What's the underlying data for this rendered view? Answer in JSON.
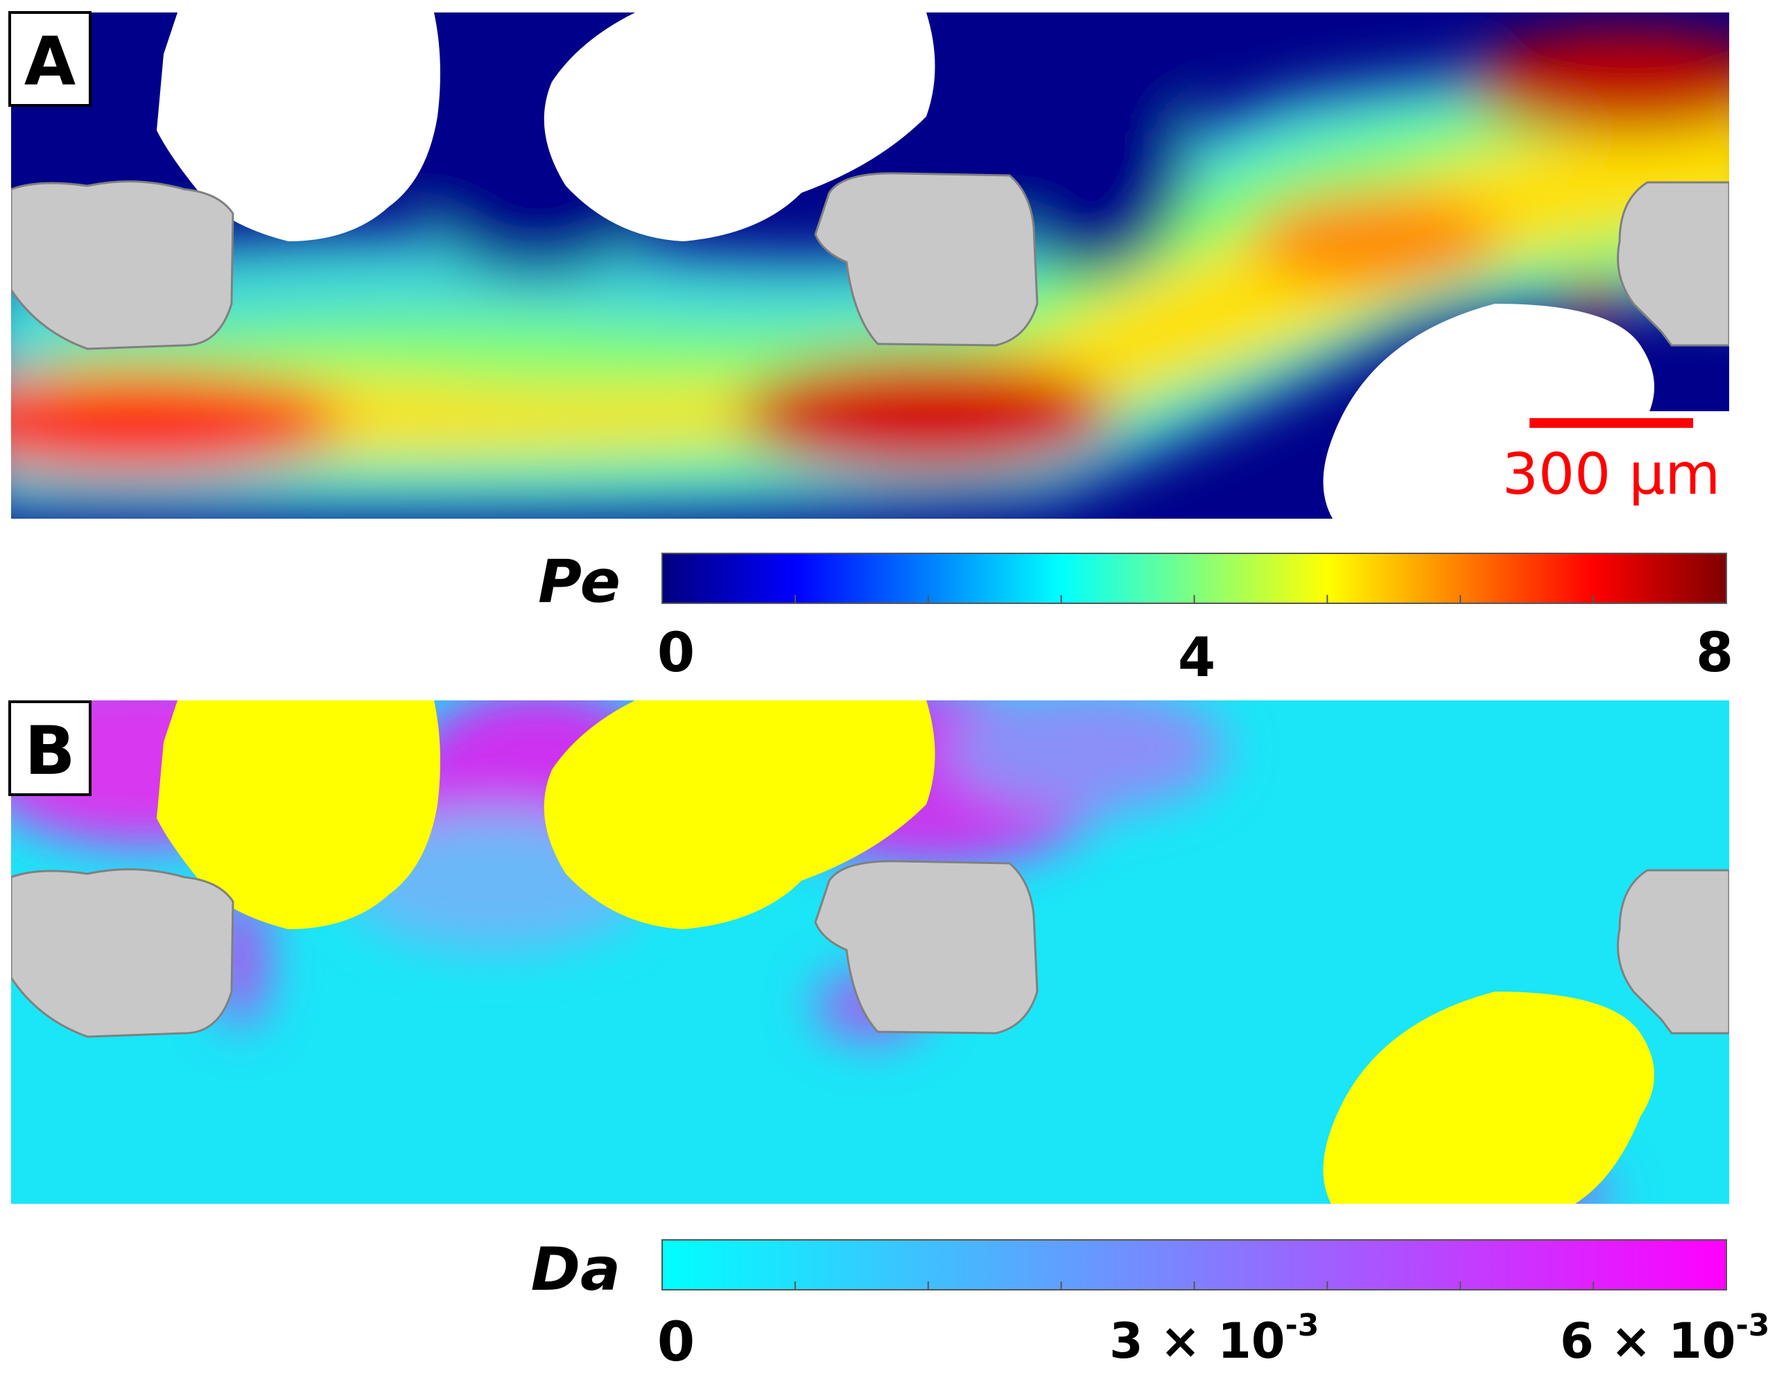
{
  "panel_a": {
    "letter": "A",
    "scale_bar": "300 µm",
    "colorbar": {
      "title": "Pe",
      "ticks": [
        "0",
        "4",
        "8"
      ],
      "range": [
        0,
        8
      ],
      "stops": [
        "#00007f",
        "#0000ff",
        "#007fff",
        "#00ffff",
        "#7fff7f",
        "#ffff00",
        "#ff7f00",
        "#ff0000",
        "#7f0000"
      ]
    }
  },
  "panel_b": {
    "letter": "B",
    "colorbar": {
      "title": "Da",
      "tick_0": "0",
      "tick_mid": "3 × 10",
      "tick_mid_exp": "-3",
      "tick_max": "6 × 10",
      "tick_max_exp": "-3",
      "range": [
        0,
        0.006
      ],
      "stops": [
        "#00ffff",
        "#ff00ff"
      ]
    }
  },
  "colors": {
    "void_a": "#ffffff",
    "void_b": "#ffff00",
    "grain": "#c8c8c8",
    "grain_edge": "#808080",
    "scale_bar": "#ff0000"
  }
}
